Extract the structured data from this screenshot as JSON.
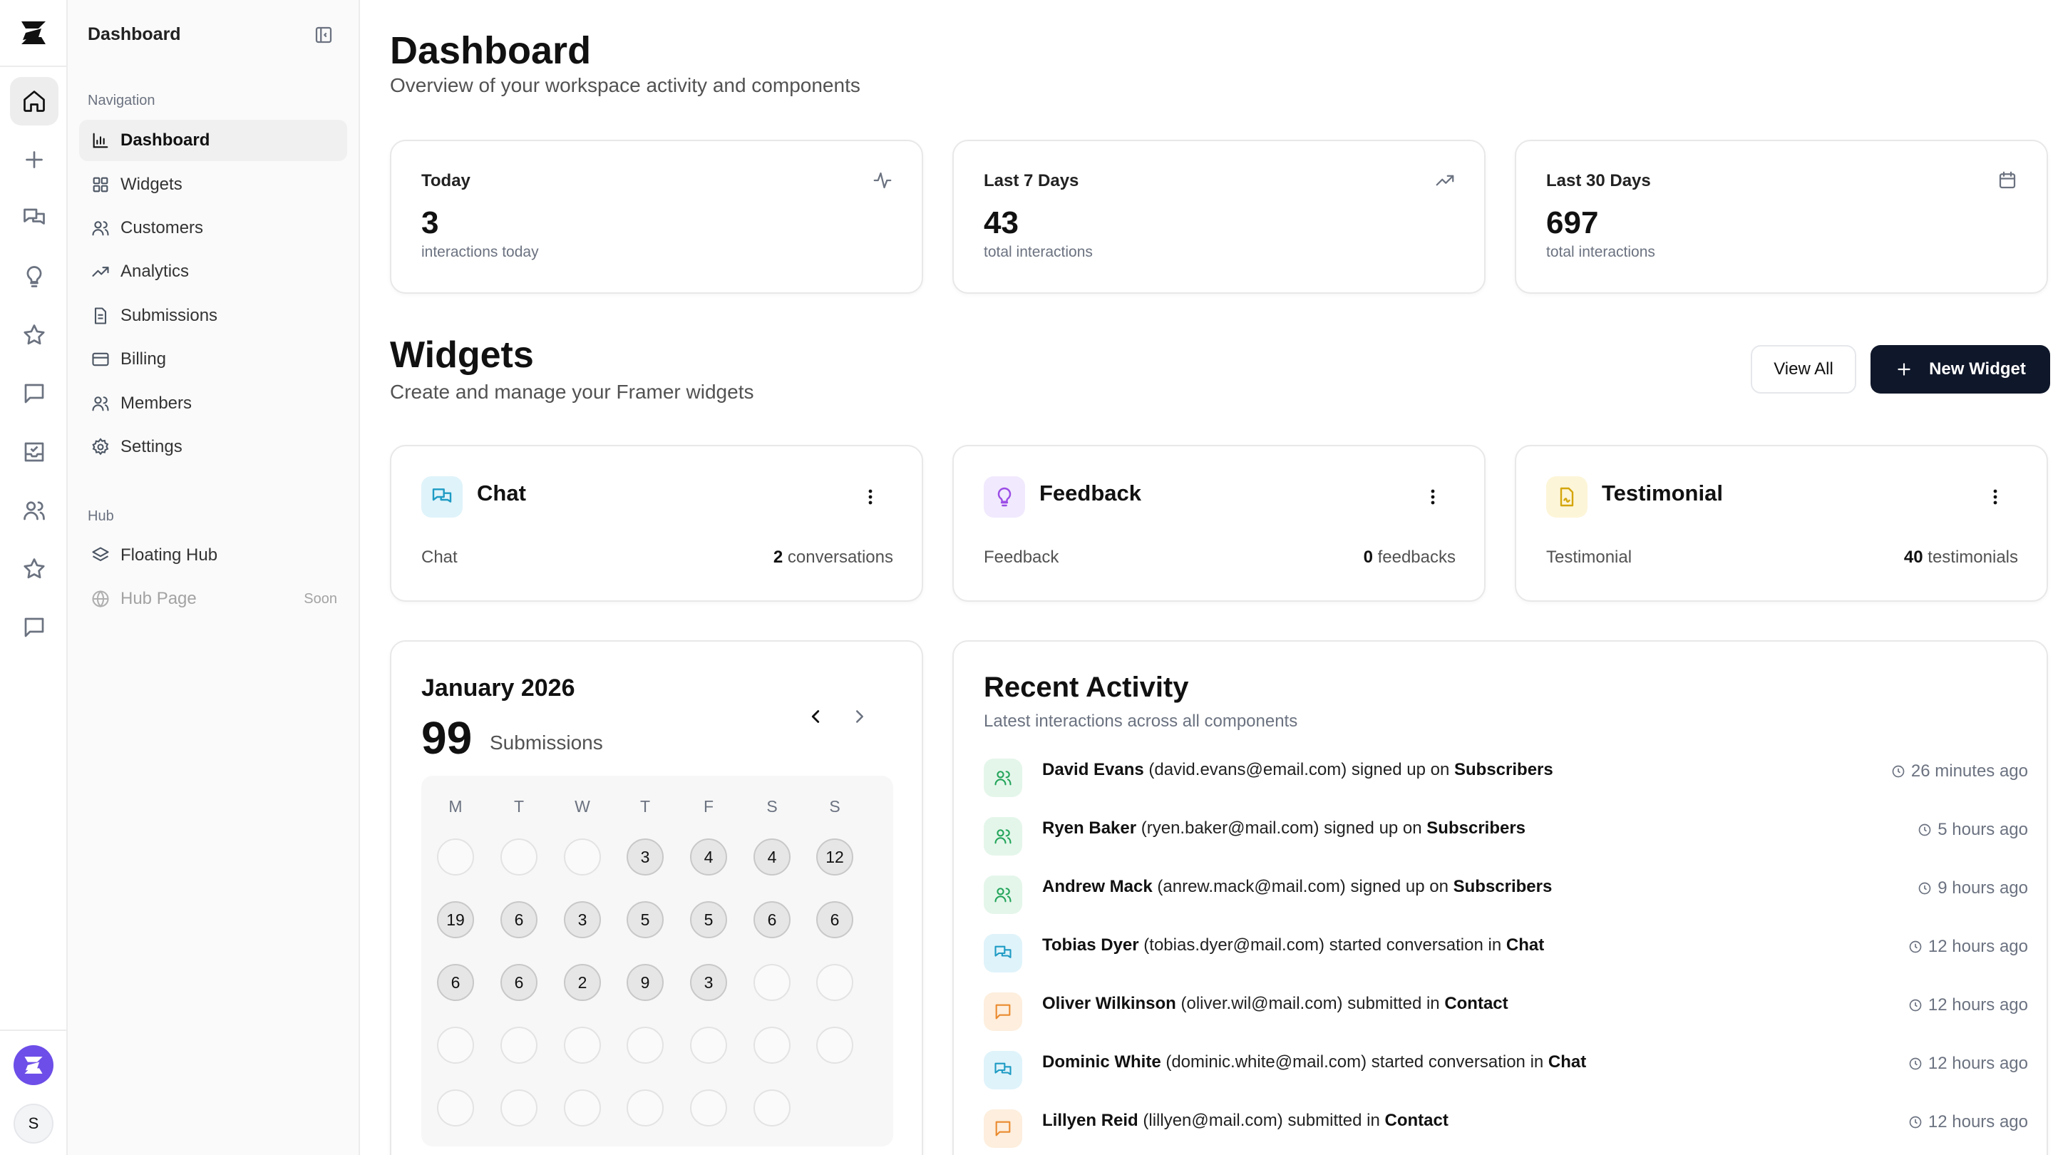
{
  "sidebar": {
    "title": "Dashboard",
    "nav_section": "Navigation",
    "nav_items": [
      {
        "label": "Dashboard",
        "icon": "bar-chart-icon",
        "active": true
      },
      {
        "label": "Widgets",
        "icon": "grid-icon"
      },
      {
        "label": "Customers",
        "icon": "users-icon"
      },
      {
        "label": "Analytics",
        "icon": "trending-up-icon"
      },
      {
        "label": "Submissions",
        "icon": "file-icon"
      },
      {
        "label": "Billing",
        "icon": "credit-card-icon"
      },
      {
        "label": "Members",
        "icon": "users-icon"
      },
      {
        "label": "Settings",
        "icon": "gear-icon"
      }
    ],
    "hub_section": "Hub",
    "hub_items": [
      {
        "label": "Floating Hub",
        "icon": "layers-icon"
      },
      {
        "label": "Hub Page",
        "icon": "globe-icon",
        "badge": "Soon",
        "disabled": true
      }
    ]
  },
  "rail": {
    "icons": [
      "home-icon",
      "plus-icon",
      "chat-icon",
      "lightbulb-icon",
      "star-icon",
      "message-square-icon",
      "inbox-icon",
      "users-icon",
      "star-icon",
      "message-square-icon"
    ],
    "avatar_initial": "S"
  },
  "header": {
    "title": "Dashboard",
    "subtitle": "Overview of your workspace activity and components"
  },
  "stats": [
    {
      "label": "Today",
      "value": "3",
      "caption": "interactions today",
      "icon": "activity-icon"
    },
    {
      "label": "Last 7 Days",
      "value": "43",
      "caption": "total interactions",
      "icon": "trending-up-icon"
    },
    {
      "label": "Last 30 Days",
      "value": "697",
      "caption": "total interactions",
      "icon": "calendar-icon"
    }
  ],
  "widgets": {
    "title": "Widgets",
    "subtitle": "Create and manage your Framer widgets",
    "view_all": "View All",
    "new_widget": "New Widget",
    "items": [
      {
        "name": "Chat",
        "type": "Chat",
        "count": "2",
        "unit": "conversations",
        "icon": "chat-icon",
        "color": "#1e9bc4"
      },
      {
        "name": "Feedback",
        "type": "Feedback",
        "count": "0",
        "unit": "feedbacks",
        "icon": "lightbulb-icon",
        "color": "#9b4de6"
      },
      {
        "name": "Testimonial",
        "type": "Testimonial",
        "count": "40",
        "unit": "testimonials",
        "icon": "file-signature-icon",
        "color": "#d4a60c"
      }
    ]
  },
  "calendar": {
    "month": "January 2026",
    "total": "99",
    "total_label": "Submissions",
    "weekdays": [
      "M",
      "T",
      "W",
      "T",
      "F",
      "S",
      "S"
    ],
    "weeks": [
      [
        "",
        "",
        "",
        "3",
        "4",
        "4",
        "12"
      ],
      [
        "19",
        "6",
        "3",
        "5",
        "5",
        "6",
        "6"
      ],
      [
        "6",
        "6",
        "2",
        "9",
        "3",
        "",
        ""
      ],
      [
        "",
        "",
        "",
        "",
        "",
        "",
        ""
      ],
      [
        "",
        "",
        "",
        "",
        "",
        "",
        null
      ]
    ]
  },
  "activity": {
    "title": "Recent Activity",
    "subtitle": "Latest interactions across all components",
    "items": [
      {
        "name": "David Evans",
        "email": "(david.evans@email.com)",
        "action": "signed up on",
        "target": "Subscribers",
        "time": "26 minutes ago",
        "kind": "green",
        "icon": "users-icon"
      },
      {
        "name": "Ryen Baker",
        "email": "(ryen.baker@mail.com)",
        "action": "signed up on",
        "target": "Subscribers",
        "time": "5 hours ago",
        "kind": "green",
        "icon": "users-icon"
      },
      {
        "name": "Andrew Mack",
        "email": "(anrew.mack@mail.com)",
        "action": "signed up on",
        "target": "Subscribers",
        "time": "9 hours ago",
        "kind": "green",
        "icon": "users-icon"
      },
      {
        "name": "Tobias Dyer",
        "email": "(tobias.dyer@mail.com)",
        "action": "started conversation in",
        "target": "Chat",
        "time": "12 hours ago",
        "kind": "cyan",
        "icon": "chat-icon"
      },
      {
        "name": "Oliver Wilkinson",
        "email": "(oliver.wil@mail.com)",
        "action": "submitted in",
        "target": "Contact",
        "time": "12 hours ago",
        "kind": "orange",
        "icon": "message-square-icon"
      },
      {
        "name": "Dominic White",
        "email": "(dominic.white@mail.com)",
        "action": "started conversation in",
        "target": "Chat",
        "time": "12 hours ago",
        "kind": "cyan",
        "icon": "chat-icon"
      },
      {
        "name": "Lillyen Reid",
        "email": "(lillyen@mail.com)",
        "action": "submitted in",
        "target": "Contact",
        "time": "12 hours ago",
        "kind": "orange",
        "icon": "message-square-icon"
      }
    ]
  }
}
